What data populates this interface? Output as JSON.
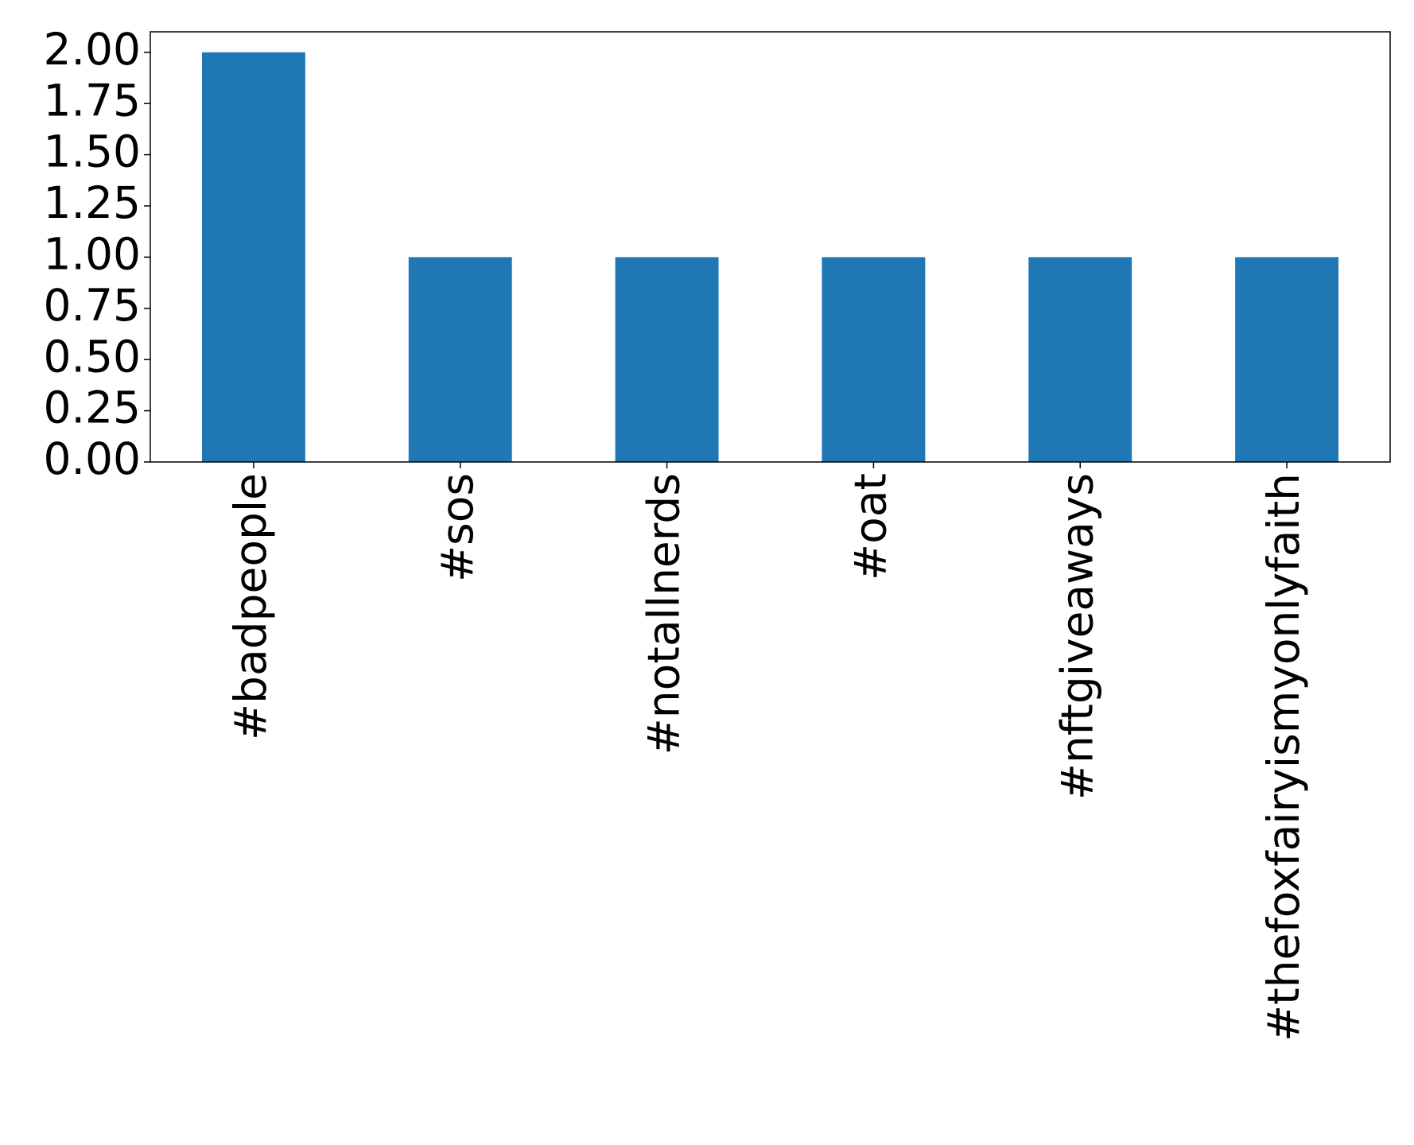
{
  "chart_data": {
    "type": "bar",
    "categories": [
      "#badpeople",
      "#sos",
      "#notallnerds",
      "#oat",
      "#nftgiveaways",
      "#thefoxfairyismyonlyfaith"
    ],
    "values": [
      2,
      1,
      1,
      1,
      1,
      1
    ],
    "color": "#1f77b4",
    "ylim": [
      0,
      2.1
    ],
    "yticks": [
      {
        "value": 0,
        "label": "0.00"
      },
      0.25,
      {
        "value": 0.5,
        "label": "0.50"
      },
      0.75,
      {
        "value": 1,
        "label": "1.00"
      },
      1.25,
      {
        "value": 1.5,
        "label": "1.50"
      },
      {
        "value": 1.75,
        "label": "1.75"
      },
      {
        "value": 2,
        "label": "2.00"
      }
    ]
  }
}
